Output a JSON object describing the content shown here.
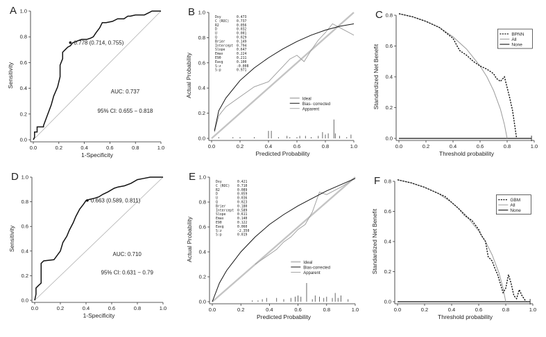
{
  "colors": {
    "axis": "#222222",
    "curve": "#111111",
    "ref": "#b0b0b0",
    "light": "#9a9a9a",
    "hist": "#555555"
  },
  "chart_data": [
    {
      "id": "A",
      "type": "line",
      "panel_label": "A",
      "xlabel": "1-Specificity",
      "ylabel": "Sensitivity",
      "xlim": [
        0,
        1
      ],
      "ylim": [
        0,
        1
      ],
      "xticks": [
        "0.0",
        "0.2",
        "0.4",
        "0.6",
        "0.8",
        "1.0"
      ],
      "yticks": [
        "0.0",
        "0.2",
        "0.4",
        "0.6",
        "0.8",
        "1.0"
      ],
      "roc": {
        "x": [
          0,
          0.01,
          0.01,
          0.03,
          0.03,
          0.08,
          0.08,
          0.11,
          0.14,
          0.16,
          0.19,
          0.21,
          0.21,
          0.23,
          0.23,
          0.25,
          0.27,
          0.29,
          0.31,
          0.33,
          0.35,
          0.38,
          0.42,
          0.45,
          0.47,
          0.49,
          0.52,
          0.54,
          0.57,
          0.62,
          0.66,
          0.71,
          0.74,
          0.76,
          0.8,
          0.87,
          0.91,
          0.93,
          0.97,
          1.0
        ],
        "y": [
          0,
          0.02,
          0.06,
          0.06,
          0.1,
          0.1,
          0.11,
          0.19,
          0.27,
          0.34,
          0.41,
          0.49,
          0.58,
          0.63,
          0.68,
          0.7,
          0.72,
          0.73,
          0.755,
          0.76,
          0.77,
          0.78,
          0.78,
          0.79,
          0.8,
          0.83,
          0.87,
          0.91,
          0.91,
          0.92,
          0.94,
          0.94,
          0.96,
          0.96,
          0.97,
          0.97,
          0.99,
          1.0,
          1.0,
          1.0
        ]
      },
      "cutoff": {
        "x": 0.29,
        "y": 0.755
      },
      "annotations": {
        "point": "0.778 (0.714, 0.755)",
        "auc": "AUC: 0.737",
        "ci": "95% CI: 0.655 − 0.818"
      }
    },
    {
      "id": "B",
      "type": "line",
      "panel_label": "B",
      "xlabel": "Predicted Probability",
      "ylabel": "Actual Probability",
      "xlim": [
        0,
        1
      ],
      "ylim": [
        0,
        1
      ],
      "xticks": [
        "0.0",
        "0.2",
        "0.4",
        "0.6",
        "0.8",
        "1.0"
      ],
      "yticks": [
        "0.0",
        "0.2",
        "0.4",
        "0.6",
        "0.8",
        "1.0"
      ],
      "stats": [
        [
          "Dxy",
          "0.473"
        ],
        [
          "C (ROC)",
          "0.737"
        ],
        [
          "R2",
          "0.056"
        ],
        [
          "D",
          "0.032"
        ],
        [
          "U",
          "0.001"
        ],
        [
          "Q",
          "0.029"
        ],
        [
          "Brier",
          "0.149"
        ],
        [
          "Intercept",
          "0.794"
        ],
        [
          "Slope",
          "0.647"
        ],
        [
          "Emax",
          "0.224"
        ],
        [
          "E90",
          "0.211"
        ],
        [
          "Eavg",
          "0.100"
        ],
        [
          "S:z",
          "-0.008"
        ],
        [
          "S:p",
          "0.971"
        ]
      ],
      "legend": [
        "Ideal",
        "Bias- corrected",
        "Apparent"
      ],
      "bias_corrected": {
        "x": [
          0.02,
          0.05,
          0.1,
          0.2,
          0.3,
          0.4,
          0.5,
          0.6,
          0.7,
          0.8,
          0.9,
          1.0
        ],
        "y": [
          0.06,
          0.22,
          0.32,
          0.46,
          0.56,
          0.64,
          0.71,
          0.77,
          0.82,
          0.86,
          0.89,
          0.91
        ]
      },
      "apparent": {
        "x": [
          0.02,
          0.05,
          0.1,
          0.2,
          0.3,
          0.4,
          0.5,
          0.55,
          0.6,
          0.65,
          0.7,
          0.75,
          0.8,
          0.85,
          0.9,
          1.0
        ],
        "y": [
          0.05,
          0.18,
          0.25,
          0.33,
          0.41,
          0.45,
          0.57,
          0.63,
          0.66,
          0.61,
          0.7,
          0.78,
          0.84,
          0.91,
          0.88,
          0.82
        ]
      },
      "spikes": {
        "x": [
          0.05,
          0.15,
          0.2,
          0.3,
          0.4,
          0.42,
          0.47,
          0.53,
          0.55,
          0.6,
          0.62,
          0.66,
          0.7,
          0.75,
          0.78,
          0.8,
          0.82,
          0.86,
          0.87,
          0.9,
          0.95,
          0.98
        ],
        "h": [
          0.01,
          0.01,
          0.01,
          0.01,
          0.06,
          0.06,
          0.01,
          0.02,
          0.01,
          0.01,
          0.02,
          0.02,
          0.01,
          0.02,
          0.05,
          0.03,
          0.04,
          0.15,
          0.04,
          0.02,
          0.01,
          0.03
        ]
      }
    },
    {
      "id": "C",
      "type": "line",
      "panel_label": "C",
      "xlabel": "Threshold probability",
      "ylabel": "Standardized Net Benefit",
      "xlim": [
        0,
        1
      ],
      "ylim": [
        0,
        0.8
      ],
      "xticks": [
        "0.0",
        "0.2",
        "0.4",
        "0.6",
        "0.8",
        "1.0"
      ],
      "yticks": [
        "0.0",
        "0.2",
        "0.4",
        "0.6",
        "0.8"
      ],
      "legend": [
        "BPNN",
        "All",
        "None"
      ],
      "model": {
        "x": [
          0,
          0.1,
          0.2,
          0.3,
          0.4,
          0.43,
          0.45,
          0.5,
          0.55,
          0.6,
          0.65,
          0.7,
          0.72,
          0.75,
          0.78,
          0.8,
          0.82,
          0.84,
          0.85,
          0.86,
          0.87
        ],
        "y": [
          0.81,
          0.79,
          0.76,
          0.72,
          0.65,
          0.6,
          0.57,
          0.54,
          0.5,
          0.47,
          0.45,
          0.42,
          0.39,
          0.37,
          0.4,
          0.33,
          0.26,
          0.18,
          0.12,
          0.06,
          0.0
        ]
      },
      "treat_all": {
        "x": [
          0,
          0.1,
          0.2,
          0.3,
          0.4,
          0.5,
          0.6,
          0.65,
          0.7,
          0.75,
          0.78,
          0.8
        ],
        "y": [
          0.81,
          0.79,
          0.76,
          0.72,
          0.66,
          0.58,
          0.47,
          0.4,
          0.31,
          0.19,
          0.09,
          0.0
        ]
      },
      "none_level": 0,
      "end_x": 0.98
    },
    {
      "id": "D",
      "type": "line",
      "panel_label": "D",
      "xlabel": "1-Specificity",
      "ylabel": "Sensitivity",
      "xlim": [
        0,
        1
      ],
      "ylim": [
        0,
        1
      ],
      "xticks": [
        "0.0",
        "0.2",
        "0.4",
        "0.6",
        "0.8",
        "1.0"
      ],
      "yticks": [
        "0.0",
        "0.2",
        "0.4",
        "0.6",
        "0.8",
        "1.0"
      ],
      "roc": {
        "x": [
          0,
          0.01,
          0.01,
          0.03,
          0.05,
          0.05,
          0.07,
          0.07,
          0.15,
          0.2,
          0.22,
          0.25,
          0.27,
          0.3,
          0.32,
          0.35,
          0.38,
          0.4,
          0.43,
          0.47,
          0.5,
          0.53,
          0.57,
          0.62,
          0.65,
          0.7,
          0.75,
          0.8,
          0.85,
          0.9,
          1.0
        ],
        "y": [
          0,
          0.05,
          0.1,
          0.12,
          0.14,
          0.3,
          0.32,
          0.32,
          0.33,
          0.4,
          0.47,
          0.52,
          0.57,
          0.63,
          0.68,
          0.74,
          0.78,
          0.81,
          0.82,
          0.83,
          0.84,
          0.86,
          0.88,
          0.91,
          0.92,
          0.93,
          0.95,
          0.98,
          0.99,
          1.0,
          1.0
        ]
      },
      "cutoff": {
        "x": 0.41,
        "y": 0.811
      },
      "annotations": {
        "point": "0.663 (0.589, 0.811)",
        "auc": "AUC: 0.710",
        "ci": "95% CI: 0.631 − 0.79"
      }
    },
    {
      "id": "E",
      "type": "line",
      "panel_label": "E",
      "xlabel": "Predicted Probability",
      "ylabel": "Actual Probability",
      "xlim": [
        0,
        1
      ],
      "ylim": [
        0,
        1
      ],
      "xticks": [
        "0.0",
        "0.2",
        "0.4",
        "0.6",
        "0.8",
        "1.0"
      ],
      "yticks": [
        "0.0",
        "0.2",
        "0.4",
        "0.6",
        "0.8",
        "1.0"
      ],
      "stats": [
        [
          "Dxy",
          "0.421"
        ],
        [
          "C (ROC)",
          "0.710"
        ],
        [
          "R2",
          "0.089"
        ],
        [
          "D",
          "0.059"
        ],
        [
          "U",
          "0.036"
        ],
        [
          "Q",
          "0.023"
        ],
        [
          "Brier",
          "0.180"
        ],
        [
          "Intercept",
          "0.589"
        ],
        [
          "Slope",
          "0.611"
        ],
        [
          "Emax",
          "0.140"
        ],
        [
          "E90",
          "0.122"
        ],
        [
          "Eavg",
          "0.060"
        ],
        [
          "S:z",
          "-2.350"
        ],
        [
          "S:p",
          "0.019"
        ]
      ],
      "legend": [
        "Ideal",
        "Bias-corrected",
        "Apparent"
      ],
      "bias_corrected": {
        "x": [
          0.0,
          0.05,
          0.1,
          0.2,
          0.3,
          0.4,
          0.5,
          0.6,
          0.7,
          0.8,
          0.9,
          1.0
        ],
        "y": [
          0.0,
          0.15,
          0.25,
          0.4,
          0.52,
          0.62,
          0.7,
          0.77,
          0.83,
          0.89,
          0.94,
          0.99
        ]
      },
      "apparent": {
        "x": [
          0.3,
          0.35,
          0.4,
          0.45,
          0.5,
          0.55,
          0.6,
          0.65,
          0.7,
          0.75,
          0.8,
          0.9,
          1.0
        ],
        "y": [
          0.3,
          0.34,
          0.38,
          0.42,
          0.48,
          0.52,
          0.58,
          0.62,
          0.72,
          0.88,
          0.86,
          0.92,
          0.99
        ]
      },
      "spikes": {
        "x": [
          0.28,
          0.32,
          0.35,
          0.38,
          0.45,
          0.5,
          0.55,
          0.58,
          0.6,
          0.62,
          0.66,
          0.7,
          0.72,
          0.75,
          0.78,
          0.8,
          0.84,
          0.86,
          0.88,
          0.9,
          0.95
        ],
        "h": [
          0.01,
          0.01,
          0.02,
          0.03,
          0.03,
          0.02,
          0.03,
          0.04,
          0.05,
          0.04,
          0.15,
          0.02,
          0.05,
          0.04,
          0.03,
          0.04,
          0.03,
          0.07,
          0.03,
          0.05,
          0.02
        ]
      }
    },
    {
      "id": "F",
      "type": "line",
      "panel_label": "F",
      "xlabel": "Threshold probability",
      "ylabel": "Standardized Net Benefit",
      "xlim": [
        0,
        1
      ],
      "ylim": [
        0,
        0.8
      ],
      "xticks": [
        "0.0",
        "0.2",
        "0.4",
        "0.6",
        "0.8",
        "1.0"
      ],
      "yticks": [
        "0.0",
        "0.2",
        "0.4",
        "0.6",
        "0.8"
      ],
      "legend": [
        "GBM",
        "All",
        "None"
      ],
      "model": {
        "x": [
          0,
          0.1,
          0.2,
          0.3,
          0.35,
          0.4,
          0.45,
          0.5,
          0.55,
          0.6,
          0.62,
          0.65,
          0.67,
          0.7,
          0.72,
          0.74,
          0.76,
          0.78,
          0.8,
          0.82,
          0.84,
          0.86,
          0.88,
          0.9,
          0.92,
          0.95
        ],
        "y": [
          0.81,
          0.79,
          0.76,
          0.72,
          0.7,
          0.66,
          0.62,
          0.57,
          0.54,
          0.48,
          0.44,
          0.4,
          0.3,
          0.27,
          0.22,
          0.18,
          0.12,
          0.06,
          0.09,
          0.18,
          0.12,
          0.04,
          0.02,
          0.08,
          0.04,
          0.0
        ]
      },
      "treat_all": {
        "x": [
          0,
          0.1,
          0.2,
          0.3,
          0.4,
          0.5,
          0.6,
          0.65,
          0.7,
          0.75,
          0.78,
          0.8
        ],
        "y": [
          0.81,
          0.79,
          0.76,
          0.72,
          0.66,
          0.58,
          0.47,
          0.4,
          0.31,
          0.19,
          0.09,
          0.0
        ]
      },
      "none_level": 0,
      "end_x": 0.98
    }
  ]
}
